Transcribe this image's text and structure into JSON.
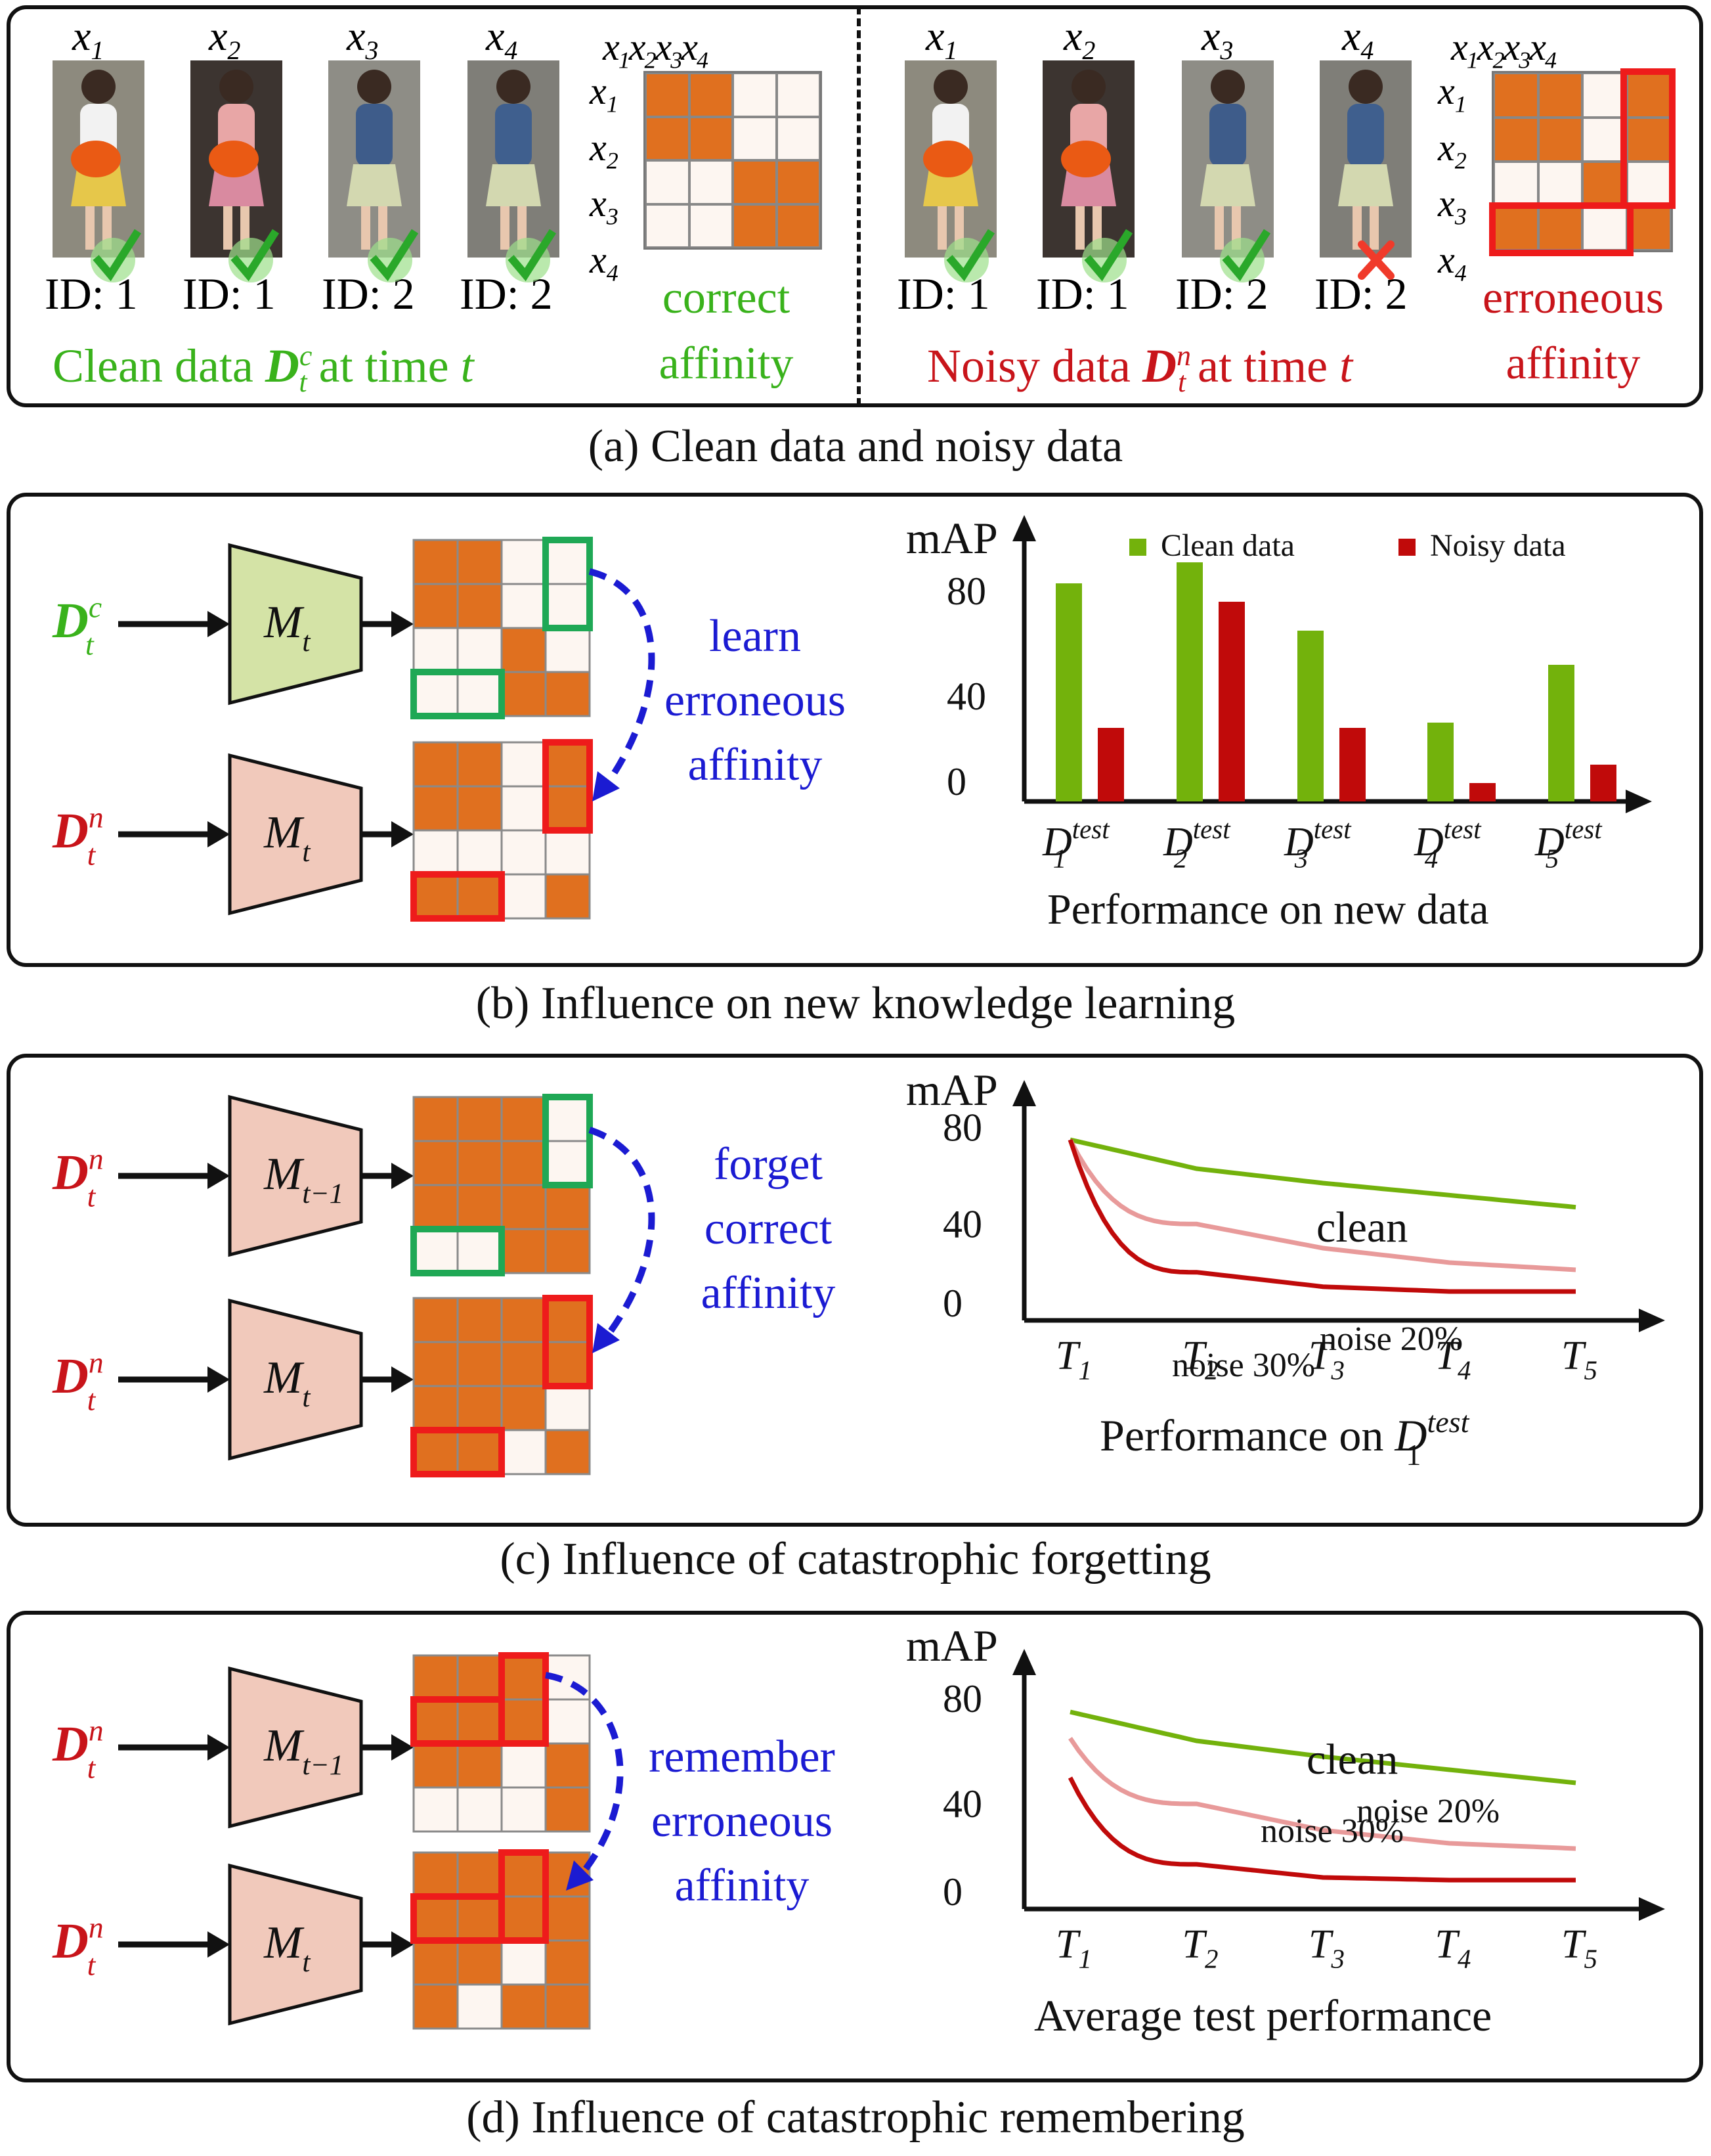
{
  "panel_a": {
    "caption": "(a) Clean data and noisy data",
    "clean": {
      "x_labels": [
        "x1",
        "x2",
        "x3",
        "x4"
      ],
      "ids": [
        "ID: 1",
        "ID: 1",
        "ID: 2",
        "ID: 2"
      ],
      "title": "Clean data",
      "title_sym": "D",
      "title_sup": "c",
      "title_sub": "t",
      "title_tail": "at time",
      "title_t": "t",
      "affinity_line1": "correct",
      "affinity_line2": "affinity"
    },
    "noisy": {
      "x_labels": [
        "x1",
        "x2",
        "x3",
        "x4"
      ],
      "ids": [
        "ID: 1",
        "ID: 1",
        "ID: 2",
        "ID: 2"
      ],
      "title": "Noisy data",
      "title_sym": "D",
      "title_sup": "n",
      "title_sub": "t",
      "title_tail": "at time",
      "title_t": "t",
      "affinity_line1": "erroneous",
      "affinity_line2": "affinity"
    }
  },
  "panel_b": {
    "caption": "(b) Influence on new knowledge learning",
    "input_top": {
      "sym": "D",
      "sup": "c",
      "sub": "t"
    },
    "input_bottom": {
      "sym": "D",
      "sup": "n",
      "sub": "t"
    },
    "model_top": {
      "sym": "M",
      "sub": "t"
    },
    "model_bottom": {
      "sym": "M",
      "sub": "t"
    },
    "arrow_label": [
      "learn",
      "erroneous",
      "affinity"
    ],
    "chart_xlabel": "Performance on new data"
  },
  "panel_c": {
    "caption": "(c) Influence of catastrophic forgetting",
    "input_top": {
      "sym": "D",
      "sup": "n",
      "sub": "t"
    },
    "input_bottom": {
      "sym": "D",
      "sup": "n",
      "sub": "t"
    },
    "model_top": {
      "sym": "M",
      "sub": "t−1"
    },
    "model_bottom": {
      "sym": "M",
      "sub": "t"
    },
    "arrow_label": [
      "forget",
      "correct",
      "affinity"
    ],
    "chart_xlabel": "Performance on",
    "chart_xlabel_sym": "D",
    "chart_xlabel_sub": "1",
    "chart_xlabel_sup": "test"
  },
  "panel_d": {
    "caption": "(d) Influence of catastrophic remembering",
    "input_top": {
      "sym": "D",
      "sup": "n",
      "sub": "t"
    },
    "input_bottom": {
      "sym": "D",
      "sup": "n",
      "sub": "t"
    },
    "model_top": {
      "sym": "M",
      "sub": "t−1"
    },
    "model_bottom": {
      "sym": "M",
      "sub": "t"
    },
    "arrow_label": [
      "remember",
      "erroneous",
      "affinity"
    ],
    "chart_xlabel": "Average test performance"
  },
  "colors": {
    "clean": "#73b20c",
    "noisy": "#c00a0a",
    "noise20": "#e89a9a",
    "noise30": "#c00a0a",
    "orange": "#e0701f",
    "red_box": "#ee1b1b",
    "green_box": "#1fa855",
    "blue_text": "#1b1bd2"
  },
  "chart_data": [
    {
      "type": "bar",
      "ylabel": "mAP",
      "yticks": [
        0,
        40,
        80
      ],
      "ylim": [
        0,
        100
      ],
      "categories": [
        "D1^test",
        "D2^test",
        "D3^test",
        "D4^test",
        "D5^test"
      ],
      "series": [
        {
          "name": "Clean data",
          "values": [
            83,
            91,
            65,
            30,
            52
          ]
        },
        {
          "name": "Noisy data",
          "values": [
            28,
            76,
            28,
            7,
            14
          ]
        }
      ],
      "legend": "top",
      "xlabel": "Performance on new data"
    },
    {
      "type": "line",
      "ylabel": "mAP",
      "yticks": [
        0,
        40,
        80
      ],
      "ylim": [
        0,
        90
      ],
      "x": [
        "T1",
        "T2",
        "T3",
        "T4",
        "T5"
      ],
      "series": [
        {
          "name": "clean",
          "values": [
            75,
            63,
            57,
            52,
            47
          ]
        },
        {
          "name": "noise 20%",
          "values": [
            75,
            40,
            30,
            24,
            21
          ]
        },
        {
          "name": "noise 30%",
          "values": [
            75,
            20,
            14,
            12,
            12
          ]
        }
      ],
      "xlabel": "Performance on D1^test"
    },
    {
      "type": "line",
      "ylabel": "mAP",
      "yticks": [
        0,
        40,
        80
      ],
      "ylim": [
        0,
        90
      ],
      "x": [
        "T1",
        "T2",
        "T3",
        "T4",
        "T5"
      ],
      "series": [
        {
          "name": "clean",
          "values": [
            75,
            64,
            58,
            53,
            48
          ]
        },
        {
          "name": "noise 20%",
          "values": [
            65,
            40,
            30,
            25,
            23
          ]
        },
        {
          "name": "noise 30%",
          "values": [
            50,
            17,
            12,
            11,
            11
          ]
        }
      ],
      "xlabel": "Average test performance"
    }
  ]
}
